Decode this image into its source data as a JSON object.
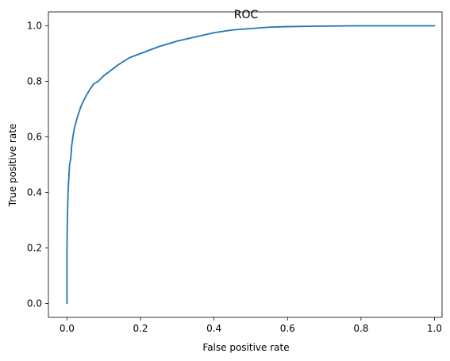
{
  "chart_data": {
    "type": "line",
    "title": "ROC",
    "xlabel": "False positive rate",
    "ylabel": "True positive rate",
    "xlim": [
      -0.0505,
      1.0205
    ],
    "ylim": [
      -0.05,
      1.05
    ],
    "x_ticks": [
      0.0,
      0.2,
      0.4,
      0.6,
      0.8,
      1.0
    ],
    "x_tick_labels": [
      "0.0",
      "0.2",
      "0.4",
      "0.6",
      "0.8",
      "1.0"
    ],
    "y_ticks": [
      0.0,
      0.2,
      0.4,
      0.6,
      0.8,
      1.0
    ],
    "y_tick_labels": [
      "0.0",
      "0.2",
      "0.4",
      "0.6",
      "0.8",
      "1.0"
    ],
    "grid": false,
    "legend": "none",
    "colors": {
      "series": "#1f77b4",
      "axes": "#000000",
      "background": "#ffffff"
    },
    "series": [
      {
        "x": [
          0.0,
          0.0,
          0.001,
          0.002,
          0.003,
          0.005,
          0.007,
          0.01,
          0.013,
          0.016,
          0.02,
          0.024,
          0.028,
          0.033,
          0.038,
          0.045,
          0.053,
          0.062,
          0.072,
          0.085,
          0.1,
          0.12,
          0.14,
          0.17,
          0.2,
          0.25,
          0.3,
          0.35,
          0.4,
          0.45,
          0.5,
          0.55,
          0.6,
          0.7,
          0.8,
          0.9,
          1.0
        ],
        "y": [
          0.0,
          0.2,
          0.3,
          0.35,
          0.4,
          0.45,
          0.5,
          0.52,
          0.57,
          0.6,
          0.63,
          0.65,
          0.67,
          0.69,
          0.71,
          0.73,
          0.75,
          0.77,
          0.79,
          0.8,
          0.82,
          0.84,
          0.86,
          0.885,
          0.9,
          0.925,
          0.945,
          0.96,
          0.975,
          0.985,
          0.99,
          0.995,
          0.997,
          0.999,
          1.0,
          1.0,
          1.0
        ]
      }
    ]
  }
}
